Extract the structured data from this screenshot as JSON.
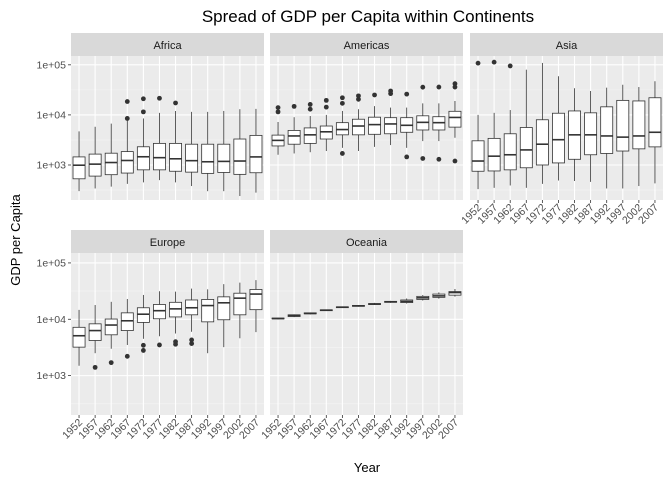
{
  "chart_data": {
    "type": "box",
    "title": "Spread of GDP per Capita within Continents",
    "xlabel": "Year",
    "ylabel": "GDP per Capita",
    "yscale": "log10",
    "ylim": [
      200,
      150000
    ],
    "ytick_values": [
      1000,
      10000,
      100000
    ],
    "ytick_labels": [
      "1e+03",
      "1e+04",
      "1e+05"
    ],
    "categories": [
      "1952",
      "1957",
      "1962",
      "1967",
      "1972",
      "1977",
      "1982",
      "1987",
      "1992",
      "1997",
      "2002",
      "2007"
    ],
    "grid": true,
    "legend": "none",
    "panels": [
      {
        "name": "Africa",
        "boxes": [
          {
            "lo": 300,
            "q1": 530,
            "med": 990,
            "q3": 1450,
            "hi": 4700,
            "outliers": []
          },
          {
            "lo": 340,
            "q1": 600,
            "med": 1040,
            "q3": 1650,
            "hi": 5800,
            "outliers": []
          },
          {
            "lo": 370,
            "q1": 640,
            "med": 1120,
            "q3": 1720,
            "hi": 6700,
            "outliers": []
          },
          {
            "lo": 420,
            "q1": 690,
            "med": 1230,
            "q3": 1850,
            "hi": 8000,
            "outliers": [
              8500,
              18500
            ]
          },
          {
            "lo": 450,
            "q1": 800,
            "med": 1460,
            "q3": 2310,
            "hi": 8500,
            "outliers": [
              11500,
              21000
            ]
          },
          {
            "lo": 500,
            "q1": 800,
            "med": 1400,
            "q3": 2700,
            "hi": 11000,
            "outliers": [
              21500
            ]
          },
          {
            "lo": 450,
            "q1": 750,
            "med": 1330,
            "q3": 2700,
            "hi": 12000,
            "outliers": [
              17300
            ]
          },
          {
            "lo": 380,
            "q1": 720,
            "med": 1220,
            "q3": 2600,
            "hi": 11500,
            "outliers": []
          },
          {
            "lo": 300,
            "q1": 680,
            "med": 1160,
            "q3": 2600,
            "hi": 11500,
            "outliers": []
          },
          {
            "lo": 300,
            "q1": 710,
            "med": 1180,
            "q3": 2600,
            "hi": 12000,
            "outliers": []
          },
          {
            "lo": 240,
            "q1": 650,
            "med": 1200,
            "q3": 3300,
            "hi": 13000,
            "outliers": []
          },
          {
            "lo": 280,
            "q1": 700,
            "med": 1450,
            "q3": 3900,
            "hi": 13200,
            "outliers": []
          }
        ]
      },
      {
        "name": "Americas",
        "boxes": [
          {
            "lo": 1600,
            "q1": 2400,
            "med": 3100,
            "q3": 3950,
            "hi": 7200,
            "outliers": [
              11500,
              13990
            ]
          },
          {
            "lo": 1700,
            "q1": 2600,
            "med": 3800,
            "q3": 4900,
            "hi": 9000,
            "outliers": [
              14800
            ]
          },
          {
            "lo": 1800,
            "q1": 2700,
            "med": 4000,
            "q3": 5500,
            "hi": 9500,
            "outliers": [
              13000,
              16200
            ]
          },
          {
            "lo": 1900,
            "q1": 3300,
            "med": 4600,
            "q3": 6000,
            "hi": 10000,
            "outliers": [
              14300,
              19500
            ]
          },
          {
            "lo": 2200,
            "q1": 4000,
            "med": 5100,
            "q3": 7000,
            "hi": 12000,
            "outliers": [
              1700,
              17000,
              22000
            ]
          },
          {
            "lo": 1900,
            "q1": 4000,
            "med": 6000,
            "q3": 8200,
            "hi": 13000,
            "outliers": [
              20500,
              24000
            ]
          },
          {
            "lo": 2300,
            "q1": 4100,
            "med": 6400,
            "q3": 9000,
            "hi": 15000,
            "outliers": [
              25000
            ]
          },
          {
            "lo": 2500,
            "q1": 4200,
            "med": 6600,
            "q3": 8800,
            "hi": 14000,
            "outliers": [
              26600,
              30000
            ]
          },
          {
            "lo": 2200,
            "q1": 4500,
            "med": 6200,
            "q3": 8800,
            "hi": 14000,
            "outliers": [
              1450,
              26000
            ]
          },
          {
            "lo": 3000,
            "q1": 5000,
            "med": 7100,
            "q3": 9600,
            "hi": 17000,
            "outliers": [
              1350,
              35800
            ]
          },
          {
            "lo": 3000,
            "q1": 5000,
            "med": 7000,
            "q3": 9200,
            "hi": 17000,
            "outliers": [
              1300,
              36000
            ]
          },
          {
            "lo": 3500,
            "q1": 5700,
            "med": 8900,
            "q3": 11800,
            "hi": 19000,
            "outliers": [
              1200,
              36000,
              42000
            ]
          }
        ]
      },
      {
        "name": "Asia",
        "boxes": [
          {
            "lo": 330,
            "q1": 750,
            "med": 1200,
            "q3": 3040,
            "hi": 10000,
            "outliers": [
              108000
            ]
          },
          {
            "lo": 350,
            "q1": 760,
            "med": 1500,
            "q3": 3400,
            "hi": 11000,
            "outliers": [
              113000
            ]
          },
          {
            "lo": 390,
            "q1": 800,
            "med": 1600,
            "q3": 4200,
            "hi": 12500,
            "outliers": [
              95000
            ]
          },
          {
            "lo": 350,
            "q1": 880,
            "med": 2000,
            "q3": 5600,
            "hi": 80000,
            "outliers": []
          },
          {
            "lo": 420,
            "q1": 1000,
            "med": 2600,
            "q3": 8000,
            "hi": 109000,
            "outliers": []
          },
          {
            "lo": 490,
            "q1": 1100,
            "med": 3200,
            "q3": 10800,
            "hi": 59000,
            "outliers": []
          },
          {
            "lo": 480,
            "q1": 1300,
            "med": 4000,
            "q3": 12000,
            "hi": 34000,
            "outliers": []
          },
          {
            "lo": 460,
            "q1": 1600,
            "med": 4000,
            "q3": 11000,
            "hi": 30000,
            "outliers": []
          },
          {
            "lo": 340,
            "q1": 1700,
            "med": 3800,
            "q3": 14500,
            "hi": 35000,
            "outliers": []
          },
          {
            "lo": 340,
            "q1": 1900,
            "med": 3600,
            "q3": 19500,
            "hi": 40000,
            "outliers": []
          },
          {
            "lo": 380,
            "q1": 2100,
            "med": 3800,
            "q3": 19000,
            "hi": 36000,
            "outliers": []
          },
          {
            "lo": 430,
            "q1": 2300,
            "med": 4500,
            "q3": 22000,
            "hi": 47000,
            "outliers": []
          }
        ]
      },
      {
        "name": "Europe",
        "boxes": [
          {
            "lo": 1500,
            "q1": 3200,
            "med": 5100,
            "q3": 7200,
            "hi": 14700,
            "outliers": []
          },
          {
            "lo": 2500,
            "q1": 4200,
            "med": 6300,
            "q3": 8300,
            "hi": 17900,
            "outliers": [
              1400
            ]
          },
          {
            "lo": 3000,
            "q1": 5300,
            "med": 7900,
            "q3": 10100,
            "hi": 20400,
            "outliers": [
              1700
            ]
          },
          {
            "lo": 3500,
            "q1": 6300,
            "med": 9400,
            "q3": 13000,
            "hi": 22900,
            "outliers": [
              2200
            ]
          },
          {
            "lo": 4500,
            "q1": 8800,
            "med": 12300,
            "q3": 16000,
            "hi": 27000,
            "outliers": [
              2800,
              3450
            ]
          },
          {
            "lo": 5000,
            "q1": 10200,
            "med": 14200,
            "q3": 18300,
            "hi": 31500,
            "outliers": [
              3500
            ]
          },
          {
            "lo": 5600,
            "q1": 11000,
            "med": 15300,
            "q3": 20000,
            "hi": 31000,
            "outliers": [
              3600,
              4000
            ]
          },
          {
            "lo": 6000,
            "q1": 12000,
            "med": 16000,
            "q3": 22000,
            "hi": 35000,
            "outliers": [
              3700,
              4300
            ]
          },
          {
            "lo": 2500,
            "q1": 9000,
            "med": 17500,
            "q3": 22500,
            "hi": 34000,
            "outliers": []
          },
          {
            "lo": 3200,
            "q1": 9800,
            "med": 19600,
            "q3": 25000,
            "hi": 42000,
            "outliers": []
          },
          {
            "lo": 4600,
            "q1": 12000,
            "med": 23700,
            "q3": 29000,
            "hi": 44700,
            "outliers": []
          },
          {
            "lo": 5900,
            "q1": 14800,
            "med": 28000,
            "q3": 33800,
            "hi": 49400,
            "outliers": []
          }
        ]
      },
      {
        "name": "Oceania",
        "boxes": [
          {
            "lo": 10000,
            "q1": 10200,
            "med": 10300,
            "q3": 10500,
            "hi": 10600,
            "outliers": []
          },
          {
            "lo": 10900,
            "q1": 11200,
            "med": 11600,
            "q3": 12000,
            "hi": 12200,
            "outliers": []
          },
          {
            "lo": 12200,
            "q1": 12500,
            "med": 12700,
            "q3": 13000,
            "hi": 13200,
            "outliers": []
          },
          {
            "lo": 14000,
            "q1": 14200,
            "med": 14500,
            "q3": 14700,
            "hi": 14900,
            "outliers": []
          },
          {
            "lo": 16000,
            "q1": 16300,
            "med": 16400,
            "q3": 16600,
            "hi": 16800,
            "outliers": []
          },
          {
            "lo": 16800,
            "q1": 17000,
            "med": 17300,
            "q3": 17600,
            "hi": 17800,
            "outliers": []
          },
          {
            "lo": 17900,
            "q1": 18300,
            "med": 18600,
            "q3": 19000,
            "hi": 19500,
            "outliers": []
          },
          {
            "lo": 19600,
            "q1": 20000,
            "med": 20400,
            "q3": 20800,
            "hi": 21200,
            "outliers": []
          },
          {
            "lo": 19000,
            "q1": 19800,
            "med": 20700,
            "q3": 22000,
            "hi": 23400,
            "outliers": []
          },
          {
            "lo": 21500,
            "q1": 22500,
            "med": 24000,
            "q3": 25500,
            "hi": 26900,
            "outliers": []
          },
          {
            "lo": 23200,
            "q1": 24500,
            "med": 26000,
            "q3": 28000,
            "hi": 30000,
            "outliers": []
          },
          {
            "lo": 25200,
            "q1": 26800,
            "med": 29800,
            "q3": 31000,
            "hi": 34400,
            "outliers": []
          }
        ]
      }
    ]
  }
}
